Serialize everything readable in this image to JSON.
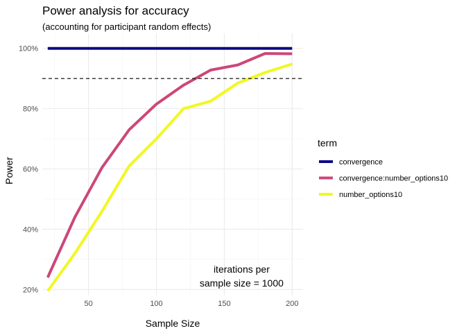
{
  "chart_data": {
    "type": "line",
    "title": "Power analysis for accuracy",
    "subtitle": "(accounting for participant random effects)",
    "xlabel": "Sample Size",
    "ylabel": "Power",
    "xlim": [
      16,
      208
    ],
    "ylim": [
      0.18,
      1.05
    ],
    "x_ticks": [
      50,
      100,
      150,
      200
    ],
    "x_tick_labels": [
      "50",
      "100",
      "150",
      "200"
    ],
    "y_ticks": [
      0.2,
      0.4,
      0.6,
      0.8,
      1.0
    ],
    "y_tick_labels": [
      "20%",
      "40%",
      "60%",
      "80%",
      "100%"
    ],
    "grid": true,
    "reference_line": {
      "y": 0.9,
      "style": "dashed"
    },
    "legend": {
      "title": "term",
      "placement": "right"
    },
    "annotation": {
      "lines": [
        "iterations per",
        "sample size = 1000"
      ],
      "x": 150,
      "y": 0.245
    },
    "series": [
      {
        "name": "convergence",
        "color": "#0d0887",
        "x": [
          20,
          40,
          60,
          80,
          100,
          120,
          140,
          160,
          180,
          200
        ],
        "values": [
          1.0,
          1.0,
          1.0,
          1.0,
          1.0,
          1.0,
          1.0,
          1.0,
          1.0,
          1.0
        ]
      },
      {
        "name": "convergence:number_options10",
        "color": "#cc4778",
        "x": [
          20,
          40,
          60,
          80,
          100,
          120,
          140,
          160,
          180,
          200
        ],
        "values": [
          0.24,
          0.44,
          0.605,
          0.73,
          0.815,
          0.878,
          0.928,
          0.945,
          0.983,
          0.982
        ]
      },
      {
        "name": "number_options10",
        "color": "#f0f921",
        "x": [
          20,
          40,
          60,
          80,
          100,
          120,
          140,
          160,
          180,
          200
        ],
        "values": [
          0.195,
          0.32,
          0.46,
          0.61,
          0.7,
          0.8,
          0.825,
          0.885,
          0.92,
          0.948
        ]
      }
    ]
  }
}
